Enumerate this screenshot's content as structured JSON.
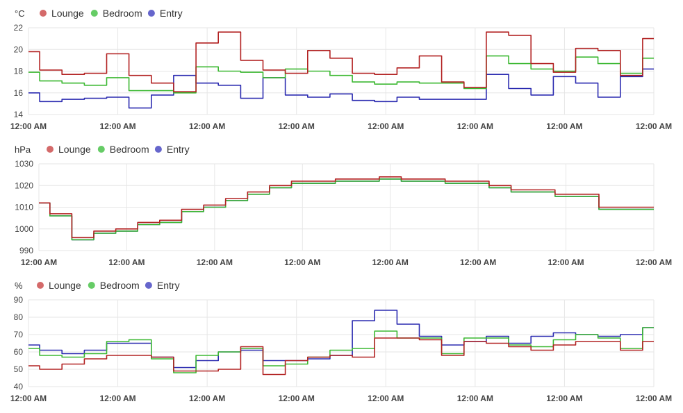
{
  "colors": {
    "lounge": "#b22222",
    "bedroom": "#3cb832",
    "entry": "#2b2bb0",
    "lounge_dot": "#d46a6a",
    "bedroom_dot": "#66cc66",
    "entry_dot": "#6666cc",
    "grid": "#e6e6e6",
    "axis_text": "#444444",
    "legend_text": "#333333"
  },
  "chart_data": [
    {
      "type": "line",
      "unit": "°C",
      "ylim": [
        14,
        22
      ],
      "yticks": [
        14,
        16,
        18,
        20,
        22
      ],
      "xticks": [
        "12:00 AM",
        "12:00 AM",
        "12:00 AM",
        "12:00 AM",
        "12:00 AM",
        "12:00 AM",
        "12:00 AM",
        "12:00 AM"
      ],
      "legend": [
        "Lounge",
        "Bedroom",
        "Entry"
      ],
      "legend_position": "top-left",
      "grid": true,
      "x": [
        0,
        0.25,
        0.5,
        0.75,
        1,
        1.25,
        1.5,
        1.75,
        2,
        2.25,
        2.5,
        2.75,
        3,
        3.25,
        3.5,
        3.75,
        4,
        4.25,
        4.5,
        4.75,
        5,
        5.25,
        5.5,
        5.75,
        6,
        6.25,
        6.5,
        6.75,
        7
      ],
      "series": [
        {
          "name": "Lounge",
          "values": [
            19.8,
            18.1,
            17.7,
            17.8,
            19.6,
            17.6,
            16.9,
            16.1,
            20.6,
            21.6,
            19.0,
            18.1,
            17.8,
            19.9,
            19.2,
            17.8,
            17.7,
            18.3,
            19.4,
            17.0,
            16.5,
            21.6,
            21.3,
            18.7,
            17.9,
            20.1,
            19.9,
            17.6,
            21.0
          ]
        },
        {
          "name": "Bedroom",
          "values": [
            17.9,
            17.1,
            16.9,
            16.7,
            17.4,
            16.2,
            16.2,
            16.0,
            18.4,
            18.0,
            17.9,
            17.4,
            18.2,
            18.0,
            17.6,
            17.0,
            16.8,
            17.0,
            16.9,
            16.9,
            16.4,
            19.4,
            18.7,
            18.2,
            18.0,
            19.3,
            18.7,
            17.8,
            19.2
          ]
        },
        {
          "name": "Entry",
          "values": [
            16.0,
            15.2,
            15.4,
            15.5,
            15.6,
            14.6,
            15.8,
            17.6,
            16.9,
            16.7,
            15.5,
            17.4,
            15.8,
            15.6,
            15.9,
            15.3,
            15.2,
            15.6,
            15.4,
            15.4,
            15.4,
            17.7,
            16.4,
            15.8,
            17.5,
            16.9,
            15.6,
            17.5,
            18.2
          ]
        }
      ]
    },
    {
      "type": "line",
      "unit": "hPa",
      "ylim": [
        990,
        1030
      ],
      "yticks": [
        990,
        1000,
        1010,
        1020,
        1030
      ],
      "xticks": [
        "12:00 AM",
        "12:00 AM",
        "12:00 AM",
        "12:00 AM",
        "12:00 AM",
        "12:00 AM",
        "12:00 AM",
        "12:00 AM"
      ],
      "legend": [
        "Lounge",
        "Bedroom",
        "Entry"
      ],
      "legend_position": "top-left",
      "grid": true,
      "x": [
        0,
        0.25,
        0.5,
        0.75,
        1,
        1.25,
        1.5,
        1.75,
        2,
        2.25,
        2.5,
        2.75,
        3,
        3.25,
        3.5,
        3.75,
        4,
        4.25,
        4.5,
        4.75,
        5,
        5.25,
        5.5,
        5.75,
        6,
        6.25,
        6.5,
        6.75,
        7
      ],
      "series": [
        {
          "name": "Lounge",
          "values": [
            1012,
            1007,
            996,
            999,
            1000,
            1003,
            1004,
            1009,
            1011,
            1014,
            1017,
            1020,
            1022,
            1022,
            1023,
            1023,
            1024,
            1023,
            1023,
            1022,
            1022,
            1020,
            1018,
            1018,
            1016,
            1016,
            1010,
            1010,
            1010
          ]
        },
        {
          "name": "Bedroom",
          "values": [
            1012,
            1006,
            995,
            998,
            999,
            1002,
            1003,
            1008,
            1010,
            1013,
            1016,
            1019,
            1021,
            1021,
            1022,
            1022,
            1023,
            1022,
            1022,
            1021,
            1021,
            1019,
            1017,
            1017,
            1015,
            1015,
            1009,
            1009,
            1009
          ]
        },
        {
          "name": "Entry",
          "values": [
            1012,
            1006,
            995,
            998,
            999,
            1002,
            1003,
            1008,
            1010,
            1013,
            1016,
            1019,
            1021,
            1021,
            1022,
            1022,
            1023,
            1022,
            1022,
            1021,
            1021,
            1019,
            1017,
            1017,
            1015,
            1015,
            1009,
            1009,
            1009
          ]
        }
      ]
    },
    {
      "type": "line",
      "unit": "%",
      "ylim": [
        40,
        90
      ],
      "yticks": [
        40,
        50,
        60,
        70,
        80,
        90
      ],
      "xticks": [
        "12:00 AM",
        "12:00 AM",
        "12:00 AM",
        "12:00 AM",
        "12:00 AM",
        "12:00 AM",
        "12:00 AM",
        "12:00 AM"
      ],
      "legend": [
        "Lounge",
        "Bedroom",
        "Entry"
      ],
      "legend_position": "top-left",
      "grid": true,
      "x": [
        0,
        0.25,
        0.5,
        0.75,
        1,
        1.25,
        1.5,
        1.75,
        2,
        2.25,
        2.5,
        2.75,
        3,
        3.25,
        3.5,
        3.75,
        4,
        4.25,
        4.5,
        4.75,
        5,
        5.25,
        5.5,
        5.75,
        6,
        6.25,
        6.5,
        6.75,
        7
      ],
      "series": [
        {
          "name": "Lounge",
          "values": [
            52,
            50,
            53,
            56,
            58,
            58,
            57,
            49,
            49,
            50,
            63,
            47,
            55,
            57,
            58,
            57,
            68,
            68,
            67,
            58,
            66,
            65,
            63,
            61,
            64,
            66,
            66,
            61,
            66
          ]
        },
        {
          "name": "Bedroom",
          "values": [
            62,
            58,
            57,
            59,
            66,
            67,
            56,
            48,
            58,
            60,
            62,
            52,
            53,
            57,
            61,
            62,
            72,
            68,
            68,
            59,
            68,
            68,
            64,
            63,
            67,
            70,
            68,
            62,
            74
          ]
        },
        {
          "name": "Entry",
          "values": [
            64,
            61,
            59,
            61,
            65,
            65,
            57,
            51,
            55,
            60,
            61,
            55,
            55,
            56,
            58,
            78,
            84,
            76,
            69,
            64,
            66,
            69,
            65,
            69,
            71,
            70,
            69,
            70,
            74
          ]
        }
      ]
    }
  ]
}
